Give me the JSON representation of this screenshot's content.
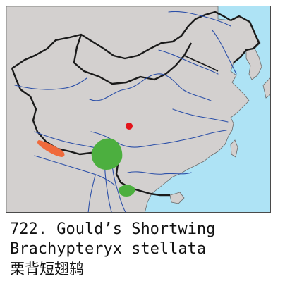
{
  "species": {
    "number": "722.",
    "common_name": "Gould’s Shortwing",
    "scientific_name": "Brachypteryx stellata",
    "chinese_name": "栗背短翅鸫"
  },
  "map": {
    "colors": {
      "sea": "#aee3f5",
      "land": "#d3d0cf",
      "border": "#1a1a1a",
      "river": "#2b4fa8",
      "breeding_range": "#4caf3f",
      "other_range": "#f06a3c",
      "record_dot": "#e3141b"
    },
    "legend_meaning_shown": false
  }
}
